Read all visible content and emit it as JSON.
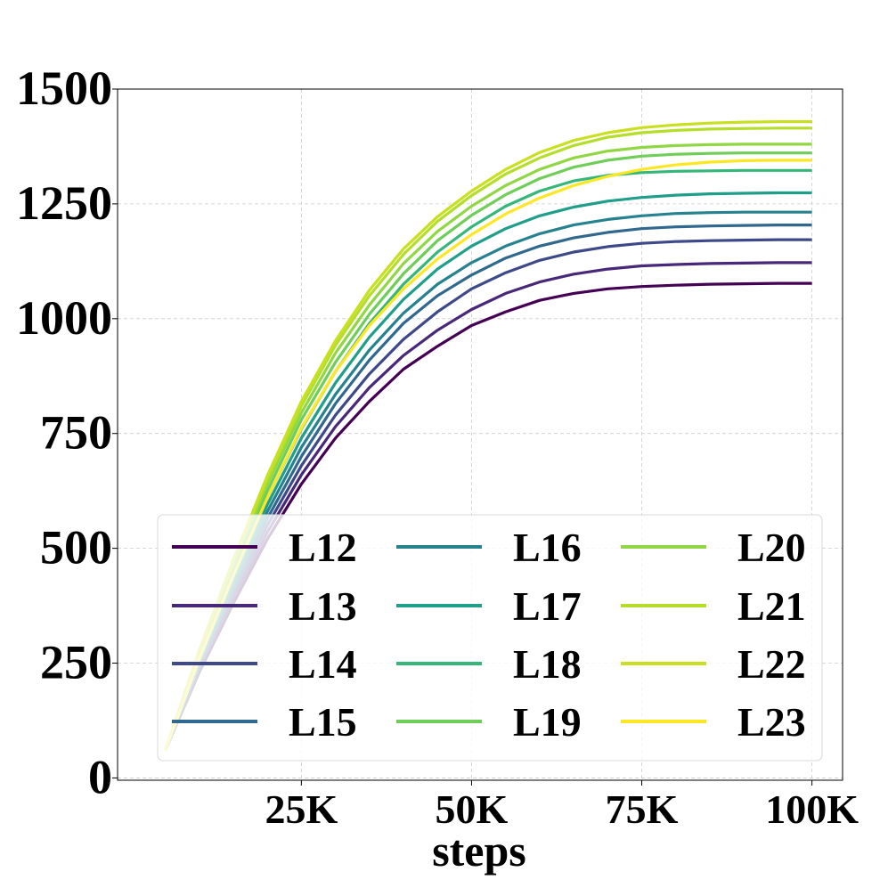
{
  "chart_data": {
    "type": "line",
    "title": "",
    "xlabel": "steps",
    "ylabel": "",
    "xlim": [
      -2000,
      104500
    ],
    "ylim": [
      -5,
      1500
    ],
    "grid": true,
    "legend_placement": "lower-right",
    "x_ticks": [
      25000,
      50000,
      75000,
      100000
    ],
    "x_tick_labels": [
      "25K",
      "50K",
      "75K",
      "100K"
    ],
    "y_ticks": [
      0,
      250,
      500,
      750,
      1000,
      1250,
      1500
    ],
    "y_tick_labels": [
      "0",
      "250",
      "500",
      "750",
      "1000",
      "1250",
      "1500"
    ],
    "x": [
      5000,
      10000,
      15000,
      20000,
      25000,
      30000,
      35000,
      40000,
      45000,
      50000,
      55000,
      60000,
      65000,
      70000,
      75000,
      80000,
      85000,
      90000,
      95000,
      100000
    ],
    "series": [
      {
        "name": "L12",
        "color": "#440154",
        "values": [
          60,
          230,
          380,
          520,
          640,
          740,
          820,
          890,
          940,
          985,
          1015,
          1040,
          1055,
          1065,
          1070,
          1073,
          1075,
          1076,
          1077,
          1077
        ]
      },
      {
        "name": "L13",
        "color": "#482878",
        "values": [
          60,
          235,
          390,
          535,
          660,
          765,
          850,
          920,
          975,
          1020,
          1055,
          1080,
          1097,
          1108,
          1115,
          1118,
          1120,
          1121,
          1122,
          1122
        ]
      },
      {
        "name": "L14",
        "color": "#3e4989",
        "values": [
          60,
          240,
          400,
          550,
          680,
          790,
          880,
          955,
          1015,
          1065,
          1100,
          1127,
          1145,
          1157,
          1164,
          1168,
          1170,
          1171,
          1172,
          1172
        ]
      },
      {
        "name": "L15",
        "color": "#31688e",
        "values": [
          60,
          245,
          410,
          565,
          700,
          815,
          910,
          990,
          1050,
          1095,
          1132,
          1158,
          1176,
          1188,
          1196,
          1200,
          1202,
          1203,
          1204,
          1204
        ]
      },
      {
        "name": "L16",
        "color": "#26828e",
        "values": [
          60,
          250,
          420,
          580,
          720,
          835,
          932,
          1012,
          1075,
          1122,
          1158,
          1185,
          1204,
          1216,
          1224,
          1229,
          1231,
          1232,
          1232,
          1232
        ]
      },
      {
        "name": "L17",
        "color": "#1f9e89",
        "values": [
          60,
          255,
          430,
          595,
          740,
          860,
          960,
          1042,
          1108,
          1158,
          1196,
          1224,
          1243,
          1256,
          1264,
          1269,
          1272,
          1273,
          1274,
          1274
        ]
      },
      {
        "name": "L18",
        "color": "#35b779",
        "values": [
          60,
          260,
          440,
          610,
          760,
          885,
          990,
          1075,
          1145,
          1200,
          1245,
          1278,
          1300,
          1312,
          1318,
          1321,
          1322,
          1323,
          1323,
          1323
        ]
      },
      {
        "name": "L19",
        "color": "#6ece58",
        "values": [
          60,
          265,
          450,
          625,
          780,
          905,
          1010,
          1098,
          1170,
          1225,
          1270,
          1305,
          1330,
          1345,
          1354,
          1358,
          1360,
          1361,
          1361,
          1361
        ]
      },
      {
        "name": "L20",
        "color": "#90d743",
        "values": [
          60,
          270,
          460,
          640,
          795,
          925,
          1030,
          1120,
          1190,
          1245,
          1290,
          1325,
          1350,
          1365,
          1373,
          1377,
          1379,
          1380,
          1380,
          1380
        ]
      },
      {
        "name": "L21",
        "color": "#b5de2b",
        "values": [
          60,
          275,
          470,
          650,
          810,
          942,
          1050,
          1140,
          1212,
          1268,
          1315,
          1350,
          1377,
          1395,
          1405,
          1410,
          1413,
          1414,
          1415,
          1415
        ]
      },
      {
        "name": "L22",
        "color": "#c8e020",
        "values": [
          60,
          278,
          475,
          658,
          820,
          952,
          1062,
          1152,
          1222,
          1278,
          1325,
          1362,
          1388,
          1405,
          1416,
          1422,
          1426,
          1428,
          1429,
          1429
        ]
      },
      {
        "name": "L23",
        "color": "#fde725",
        "values": [
          60,
          258,
          440,
          610,
          762,
          885,
          985,
          1065,
          1130,
          1183,
          1228,
          1263,
          1290,
          1310,
          1325,
          1335,
          1341,
          1344,
          1345,
          1345
        ]
      }
    ]
  }
}
